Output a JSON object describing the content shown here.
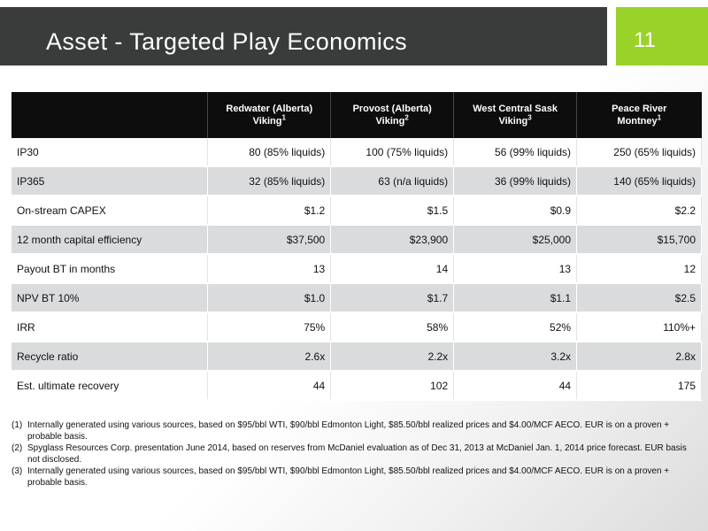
{
  "title": "Asset - Targeted Play Economics",
  "page_number": "11",
  "columns": [
    {
      "line1": "Redwater (Alberta)",
      "line2": "Viking",
      "sup": "1"
    },
    {
      "line1": "Provost (Alberta)",
      "line2": "Viking",
      "sup": "2"
    },
    {
      "line1": "West Central Sask",
      "line2": "Viking",
      "sup": "3"
    },
    {
      "line1": "Peace River",
      "line2": "Montney",
      "sup": "1"
    }
  ],
  "rows": [
    {
      "label": "IP30",
      "values": [
        "80 (85% liquids)",
        "100 (75% liquids)",
        "56 (99% liquids)",
        "250 (65% liquids)"
      ]
    },
    {
      "label": "IP365",
      "values": [
        "32 (85% liquids)",
        "63 (n/a liquids)",
        "36 (99% liquids)",
        "140 (65% liquids)"
      ]
    },
    {
      "label": "On-stream CAPEX",
      "values": [
        "$1.2",
        "$1.5",
        "$0.9",
        "$2.2"
      ]
    },
    {
      "label": "12 month capital efficiency",
      "values": [
        "$37,500",
        "$23,900",
        "$25,000",
        "$15,700"
      ]
    },
    {
      "label": "Payout BT in months",
      "values": [
        "13",
        "14",
        "13",
        "12"
      ]
    },
    {
      "label": "NPV BT 10%",
      "values": [
        "$1.0",
        "$1.7",
        "$1.1",
        "$2.5"
      ]
    },
    {
      "label": "IRR",
      "values": [
        "75%",
        "58%",
        "52%",
        "110%+"
      ]
    },
    {
      "label": "Recycle ratio",
      "values": [
        "2.6x",
        "2.2x",
        "3.2x",
        "2.8x"
      ]
    },
    {
      "label": "Est. ultimate recovery",
      "values": [
        "44",
        "102",
        "44",
        "175"
      ]
    }
  ],
  "footnotes": [
    {
      "mark": "(1)",
      "text": "Internally generated using various sources, based on $95/bbl WTI, $90/bbl Edmonton Light, $85.50/bbl realized prices and $4.00/MCF AECO. EUR is on a proven + probable basis."
    },
    {
      "mark": "(2)",
      "text": "Spyglass Resources Corp. presentation June 2014, based on reserves from McDaniel evaluation as of Dec 31, 2013 at McDaniel Jan. 1, 2014 price forecast. EUR basis not disclosed."
    },
    {
      "mark": "(3)",
      "text": "Internally generated using various sources, based on $95/bbl WTI, $90/bbl Edmonton Light, $85.50/bbl realized prices and $4.00/MCF AECO. EUR is on a proven + probable basis."
    }
  ]
}
